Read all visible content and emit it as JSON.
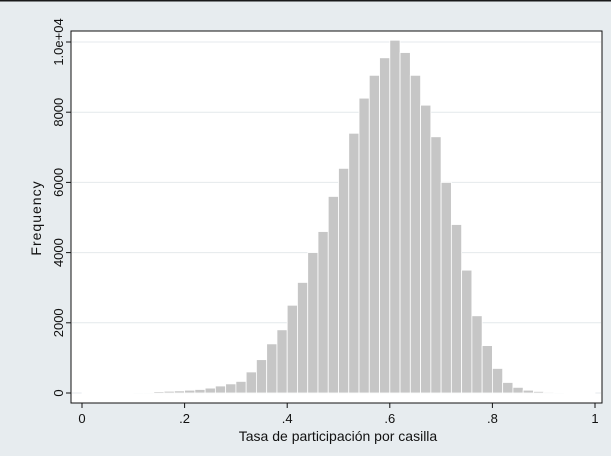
{
  "chart_data": {
    "type": "bar",
    "title": "",
    "xlabel": "Tasa de participación por casilla",
    "ylabel": "Frequency",
    "xlim": [
      0,
      1
    ],
    "ylim": [
      0,
      10000
    ],
    "x_ticks": [
      {
        "value": 0,
        "label": "0"
      },
      {
        "value": 0.2,
        "label": ".2"
      },
      {
        "value": 0.4,
        "label": ".4"
      },
      {
        "value": 0.6,
        "label": ".6"
      },
      {
        "value": 0.8,
        "label": ".8"
      },
      {
        "value": 1,
        "label": "1"
      }
    ],
    "y_ticks": [
      {
        "value": 0,
        "label": "0"
      },
      {
        "value": 2000,
        "label": "2000"
      },
      {
        "value": 4000,
        "label": "4000"
      },
      {
        "value": 6000,
        "label": "6000"
      },
      {
        "value": 8000,
        "label": "8000"
      },
      {
        "value": 10000,
        "label": "1.0e+04"
      }
    ],
    "grid": true,
    "bin_width": 0.02,
    "bin_starts": [
      0,
      0.02,
      0.04,
      0.06,
      0.08,
      0.1,
      0.12,
      0.14,
      0.16,
      0.18,
      0.2,
      0.22,
      0.24,
      0.26,
      0.28,
      0.3,
      0.32,
      0.34,
      0.36,
      0.38,
      0.4,
      0.42,
      0.44,
      0.46,
      0.48,
      0.5,
      0.52,
      0.54,
      0.56,
      0.58,
      0.6,
      0.62,
      0.64,
      0.66,
      0.68,
      0.7,
      0.72,
      0.74,
      0.76,
      0.78,
      0.8,
      0.82,
      0.84,
      0.86,
      0.88,
      0.9,
      0.92,
      0.94,
      0.96,
      0.98
    ],
    "values": [
      5,
      5,
      5,
      5,
      10,
      15,
      20,
      40,
      50,
      60,
      80,
      100,
      140,
      200,
      260,
      330,
      600,
      950,
      1400,
      1800,
      2500,
      3150,
      4000,
      4600,
      5600,
      6400,
      7400,
      8400,
      9050,
      9550,
      10050,
      9700,
      9050,
      8200,
      7300,
      6000,
      4800,
      3500,
      2200,
      1350,
      700,
      300,
      160,
      80,
      45,
      25,
      15,
      10,
      5,
      5
    ],
    "colors": {
      "bar_fill": "#c6c6c6",
      "bar_edge": "#ffffff",
      "plot_background": "#ffffff",
      "outer_background": "#e7ecef",
      "grid": "#e4e9ec",
      "axis": "#111111"
    }
  }
}
